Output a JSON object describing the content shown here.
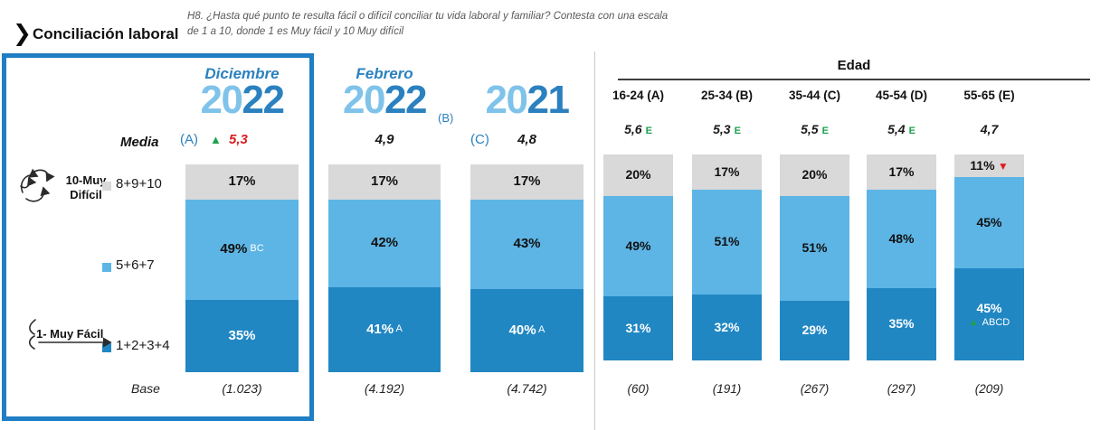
{
  "header": {
    "title": "Conciliación laboral",
    "question": "H8. ¿Hasta qué punto te resulta fácil o difícil conciliar tu vida laboral y familiar? Contesta con una escala de 1 a 10, donde 1 es Muy fácil y 10 Muy difícil"
  },
  "labels": {
    "media": "Media",
    "base": "Base"
  },
  "legend": {
    "difficult_anchor": "10-Muy\nDifícil",
    "easy_anchor": "1- Muy Fácil",
    "buckets": [
      {
        "name": "8+9+10",
        "color": "#d9d9d9"
      },
      {
        "name": "5+6+7",
        "color": "#5db5e5"
      },
      {
        "name": "1+2+3+4",
        "color": "#2187c3"
      }
    ]
  },
  "colors": {
    "segment_gray": "#d9d9d9",
    "segment_light_blue": "#5db5e5",
    "segment_dark_blue": "#2187c3",
    "year_light": "#7fc3ea",
    "accent_blue": "#2b81bf",
    "box_border": "#1f7ec4",
    "green": "#1ea24c",
    "red": "#e01f1f"
  },
  "icons": {
    "chevron": "❯",
    "triangle_up": "▲",
    "triangle_down": "▼",
    "difficult_icon": "twisted-arrows",
    "easy_icon": "straight-arrow"
  },
  "waves": [
    {
      "month": "Diciembre",
      "year_light": "20",
      "year_dark": "22",
      "letter": "(A)",
      "letter_position": "media-left",
      "media": "5,3",
      "media_red": true,
      "media_arrow": "up",
      "segments": [
        {
          "label": "17%",
          "pct": 17,
          "sig": ""
        },
        {
          "label": "49%",
          "pct": 49,
          "sig": "BC"
        },
        {
          "label": "35%",
          "pct": 35,
          "sig": ""
        }
      ],
      "base": "(1.023)"
    },
    {
      "month": "Febrero",
      "year_light": "20",
      "year_dark": "22",
      "letter": "(B)",
      "letter_position": "after-year",
      "media": "4,9",
      "media_red": false,
      "media_arrow": "",
      "segments": [
        {
          "label": "17%",
          "pct": 17,
          "sig": ""
        },
        {
          "label": "42%",
          "pct": 42,
          "sig": ""
        },
        {
          "label": "41%",
          "pct": 41,
          "sig": "A"
        }
      ],
      "base": "(4.192)"
    },
    {
      "month": "",
      "year_light": "20",
      "year_dark": "21",
      "letter": "(C)",
      "letter_position": "media-left",
      "media": "4,8",
      "media_red": false,
      "media_arrow": "",
      "segments": [
        {
          "label": "17%",
          "pct": 17,
          "sig": ""
        },
        {
          "label": "43%",
          "pct": 43,
          "sig": ""
        },
        {
          "label": "40%",
          "pct": 40,
          "sig": "A"
        }
      ],
      "base": "(4.742)"
    }
  ],
  "edad": {
    "title": "Edad",
    "columns": [
      {
        "label": "16-24 (A)",
        "media": "5,6",
        "media_sig": "E",
        "segments": [
          {
            "label": "20%",
            "pct": 20
          },
          {
            "label": "49%",
            "pct": 49
          },
          {
            "label": "31%",
            "pct": 31
          }
        ],
        "base": "(60)",
        "top_arrow": "",
        "bottom_arrow": "",
        "bottom_sig": ""
      },
      {
        "label": "25-34 (B)",
        "media": "5,3",
        "media_sig": "E",
        "segments": [
          {
            "label": "17%",
            "pct": 17
          },
          {
            "label": "51%",
            "pct": 51
          },
          {
            "label": "32%",
            "pct": 32
          }
        ],
        "base": "(191)",
        "top_arrow": "",
        "bottom_arrow": "",
        "bottom_sig": ""
      },
      {
        "label": "35-44 (C)",
        "media": "5,5",
        "media_sig": "E",
        "segments": [
          {
            "label": "20%",
            "pct": 20
          },
          {
            "label": "51%",
            "pct": 51
          },
          {
            "label": "29%",
            "pct": 29
          }
        ],
        "base": "(267)",
        "top_arrow": "",
        "bottom_arrow": "",
        "bottom_sig": ""
      },
      {
        "label": "45-54 (D)",
        "media": "5,4",
        "media_sig": "E",
        "segments": [
          {
            "label": "17%",
            "pct": 17
          },
          {
            "label": "48%",
            "pct": 48
          },
          {
            "label": "35%",
            "pct": 35
          }
        ],
        "base": "(297)",
        "top_arrow": "",
        "bottom_arrow": "",
        "bottom_sig": ""
      },
      {
        "label": "55-65 (E)",
        "media": "4,7",
        "media_sig": "",
        "segments": [
          {
            "label": "11%",
            "pct": 11
          },
          {
            "label": "45%",
            "pct": 45
          },
          {
            "label": "45%",
            "pct": 45
          }
        ],
        "base": "(209)",
        "top_arrow": "down",
        "bottom_arrow": "up",
        "bottom_sig": "ABCD"
      }
    ]
  },
  "chart_data": {
    "type": "bar",
    "stacked": true,
    "unit": "%",
    "title": "Conciliación laboral",
    "question": "H8. ¿Hasta qué punto te resulta fácil o difícil conciliar tu vida laboral y familiar? Contesta con una escala de 1 a 10, donde 1 es Muy fácil y 10 Muy difícil",
    "segment_order": [
      "8+9+10 (10-Muy Difícil)",
      "5+6+7",
      "1+2+3+4 (1-Muy Fácil)"
    ],
    "groups": [
      {
        "label": "Diciembre 2022 (A)",
        "media": 5.3,
        "media_flag": "up-red",
        "values": [
          17,
          49,
          35
        ],
        "base": 1023,
        "significance": {
          "5+6+7": "BC"
        }
      },
      {
        "label": "Febrero 2022 (B)",
        "media": 4.9,
        "values": [
          17,
          42,
          41
        ],
        "base": 4192,
        "significance": {
          "1+2+3+4": "A"
        }
      },
      {
        "label": "2021 (C)",
        "media": 4.8,
        "values": [
          17,
          43,
          40
        ],
        "base": 4742,
        "significance": {
          "1+2+3+4": "A"
        }
      },
      {
        "label": "Edad 16-24 (A)",
        "media": 5.6,
        "media_sig": "E",
        "values": [
          20,
          49,
          31
        ],
        "base": 60
      },
      {
        "label": "Edad 25-34 (B)",
        "media": 5.3,
        "media_sig": "E",
        "values": [
          17,
          51,
          32
        ],
        "base": 191
      },
      {
        "label": "Edad 35-44 (C)",
        "media": 5.5,
        "media_sig": "E",
        "values": [
          20,
          51,
          29
        ],
        "base": 267
      },
      {
        "label": "Edad 45-54 (D)",
        "media": 5.4,
        "media_sig": "E",
        "values": [
          17,
          48,
          35
        ],
        "base": 297
      },
      {
        "label": "Edad 55-65 (E)",
        "media": 4.7,
        "values": [
          11,
          45,
          45
        ],
        "base": 209,
        "significance": {
          "8+9+10": "significantly lower (red down)",
          "1+2+3+4": "ABCD (green up)"
        }
      }
    ]
  }
}
